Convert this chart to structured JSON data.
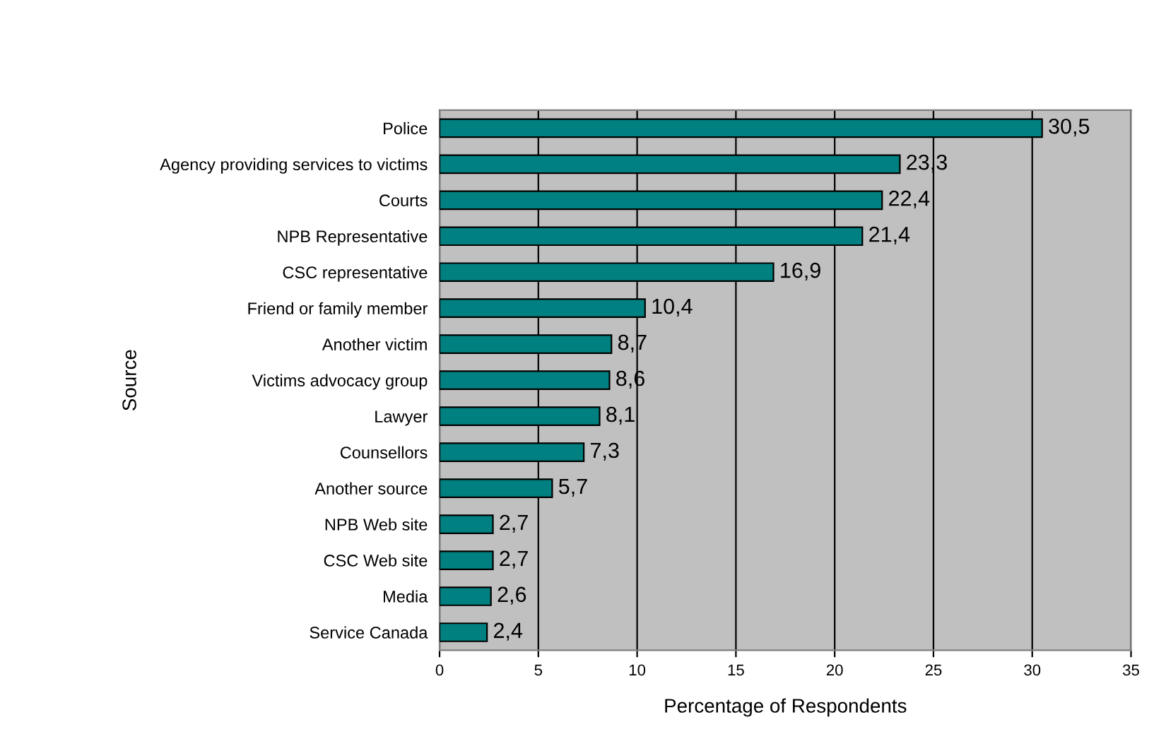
{
  "chart_data": {
    "type": "bar",
    "orientation": "horizontal",
    "xlabel": "Percentage of Respondents",
    "ylabel": "Source",
    "categories": [
      "Police",
      "Agency providing services to victims",
      "Courts",
      "NPB Representative",
      "CSC representative",
      "Friend or family member",
      "Another victim",
      "Victims advocacy group",
      "Lawyer",
      "Counsellors",
      "Another source",
      "NPB Web site",
      "CSC Web site",
      "Media",
      "Service Canada"
    ],
    "values": [
      30.5,
      23.3,
      22.4,
      21.4,
      16.9,
      10.4,
      8.7,
      8.6,
      8.1,
      7.3,
      5.7,
      2.7,
      2.7,
      2.6,
      2.4
    ],
    "value_labels": [
      "30,5",
      "23,3",
      "22,4",
      "21,4",
      "16,9",
      "10,4",
      "8,7",
      "8,6",
      "8,1",
      "7,3",
      "5,7",
      "2,7",
      "2,7",
      "2,6",
      "2,4"
    ],
    "color": "#008080",
    "xlim": [
      0,
      35
    ],
    "xticks": [
      0,
      5,
      10,
      15,
      20,
      25,
      30,
      35
    ],
    "grid": "x",
    "legend": false
  }
}
